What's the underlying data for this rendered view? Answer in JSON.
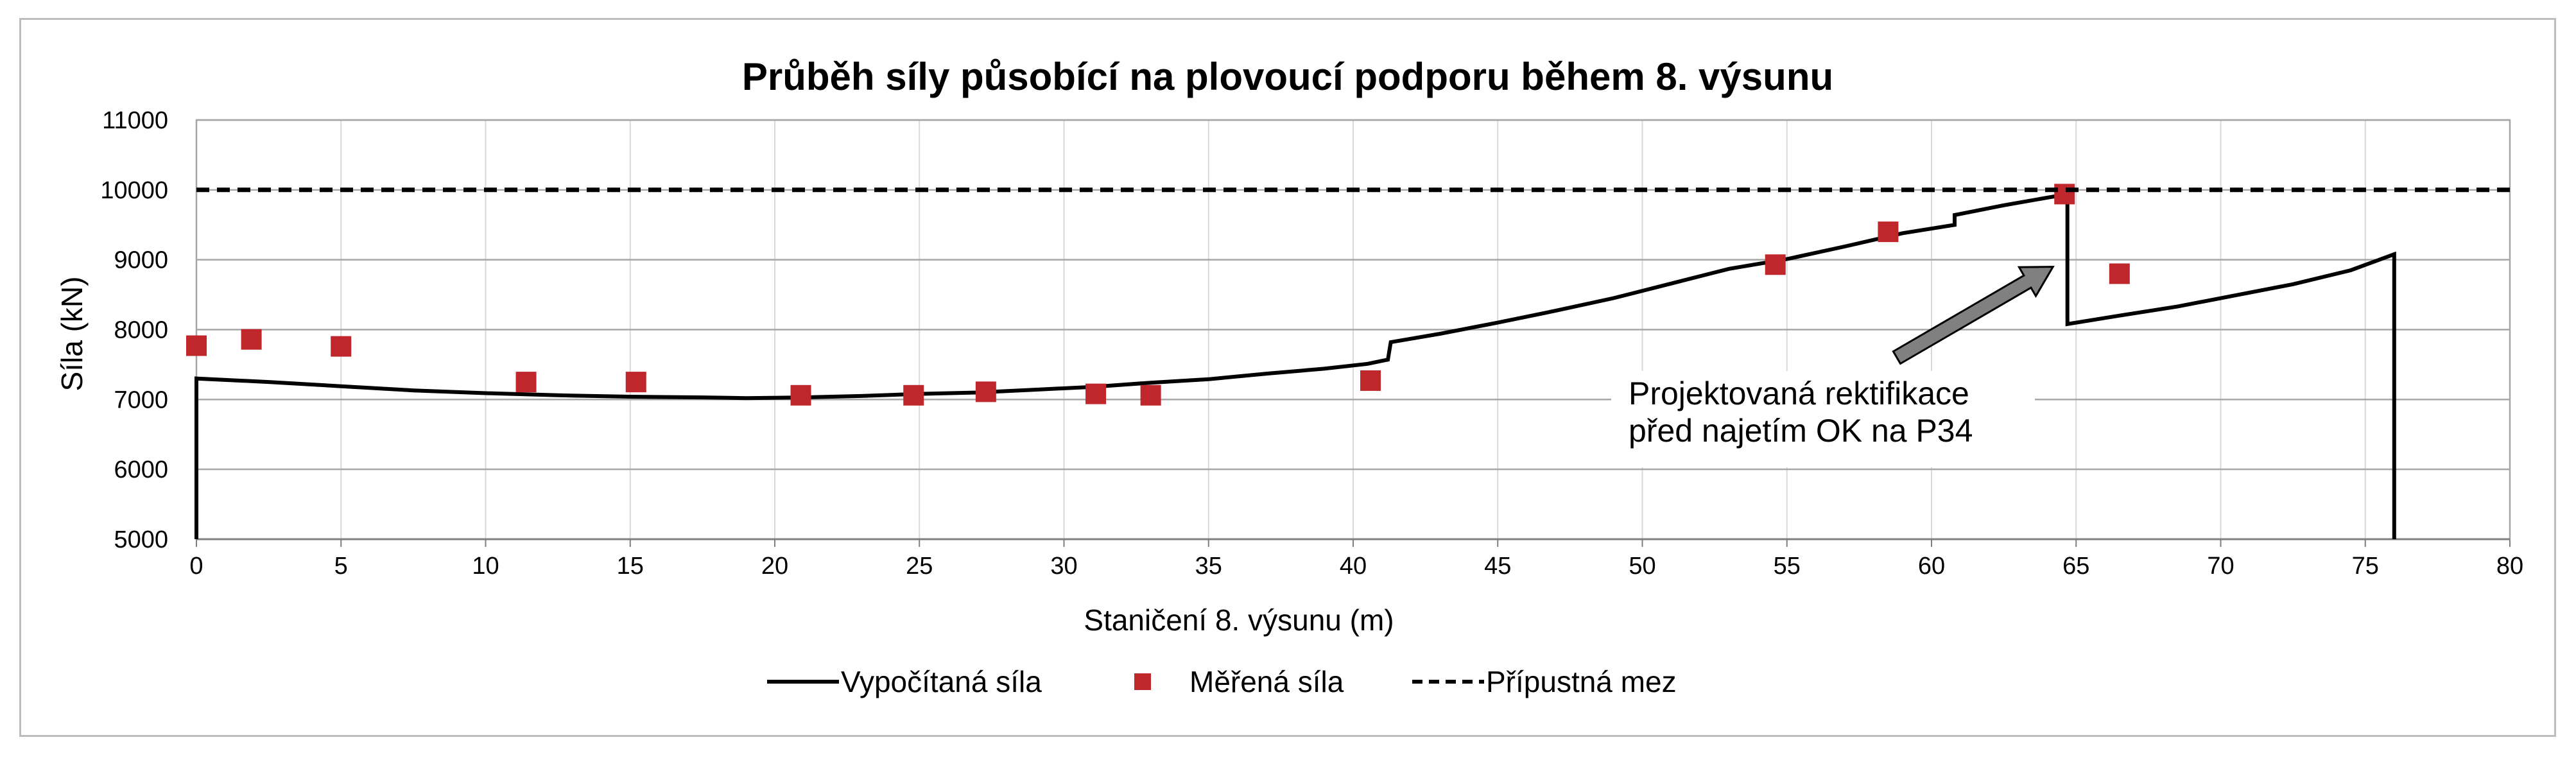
{
  "chart_data": {
    "type": "line",
    "title": "Průběh síly působící na plovoucí podporu během 8. výsunu",
    "xlabel": "Staničení 8. výsunu (m)",
    "ylabel": "Síla (kN)",
    "xlim": [
      0,
      80
    ],
    "ylim": [
      5000,
      11000
    ],
    "xticks": [
      0,
      5,
      10,
      15,
      20,
      25,
      30,
      35,
      40,
      45,
      50,
      55,
      60,
      65,
      70,
      75,
      80
    ],
    "yticks": [
      5000,
      6000,
      7000,
      8000,
      9000,
      10000,
      11000
    ],
    "grid": true,
    "legend_position": "bottom",
    "series": [
      {
        "name": "Vypočítaná síla",
        "style": "solid",
        "color": "#000000",
        "points": [
          [
            0,
            5000
          ],
          [
            0,
            7300
          ],
          [
            2.5,
            7250
          ],
          [
            5,
            7190
          ],
          [
            7.5,
            7130
          ],
          [
            10,
            7090
          ],
          [
            12.5,
            7060
          ],
          [
            15,
            7040
          ],
          [
            17.5,
            7030
          ],
          [
            19,
            7020
          ],
          [
            21,
            7030
          ],
          [
            23,
            7050
          ],
          [
            25,
            7080
          ],
          [
            27,
            7100
          ],
          [
            29,
            7140
          ],
          [
            31,
            7180
          ],
          [
            33,
            7240
          ],
          [
            35,
            7290
          ],
          [
            37,
            7370
          ],
          [
            39,
            7440
          ],
          [
            40.5,
            7510
          ],
          [
            41.2,
            7570
          ],
          [
            41.3,
            7820
          ],
          [
            43,
            7940
          ],
          [
            45,
            8100
          ],
          [
            47,
            8270
          ],
          [
            49,
            8450
          ],
          [
            51,
            8660
          ],
          [
            53,
            8870
          ],
          [
            55,
            9010
          ],
          [
            57,
            9190
          ],
          [
            59,
            9380
          ],
          [
            60.8,
            9500
          ],
          [
            60.8,
            9640
          ],
          [
            62.5,
            9780
          ],
          [
            64.7,
            9940
          ],
          [
            64.7,
            8080
          ],
          [
            66.5,
            8200
          ],
          [
            68.5,
            8330
          ],
          [
            70.5,
            8490
          ],
          [
            72.5,
            8650
          ],
          [
            74.5,
            8850
          ],
          [
            76,
            9080
          ],
          [
            76,
            5000
          ]
        ]
      },
      {
        "name": "Měřená síla",
        "style": "markers",
        "color": "#c0272d",
        "points": [
          [
            0,
            7770
          ],
          [
            1.9,
            7860
          ],
          [
            5,
            7760
          ],
          [
            11.4,
            7250
          ],
          [
            15.2,
            7250
          ],
          [
            20.9,
            7060
          ],
          [
            24.8,
            7060
          ],
          [
            27.3,
            7110
          ],
          [
            31.1,
            7080
          ],
          [
            33,
            7060
          ],
          [
            40.6,
            7270
          ],
          [
            54.6,
            8930
          ],
          [
            58.5,
            9400
          ],
          [
            64.6,
            9940
          ],
          [
            66.5,
            8800
          ]
        ]
      },
      {
        "name": "Přípustná mez",
        "style": "dashed",
        "color": "#000000",
        "points": [
          [
            0,
            10000
          ],
          [
            80,
            10000
          ]
        ]
      }
    ],
    "annotations": [
      {
        "text_lines": [
          "Projektovaná rektifikace",
          "před najetím OK na P34"
        ],
        "arrow_from": [
          58.8,
          7600
        ],
        "arrow_to": [
          64.2,
          8900
        ]
      }
    ]
  }
}
